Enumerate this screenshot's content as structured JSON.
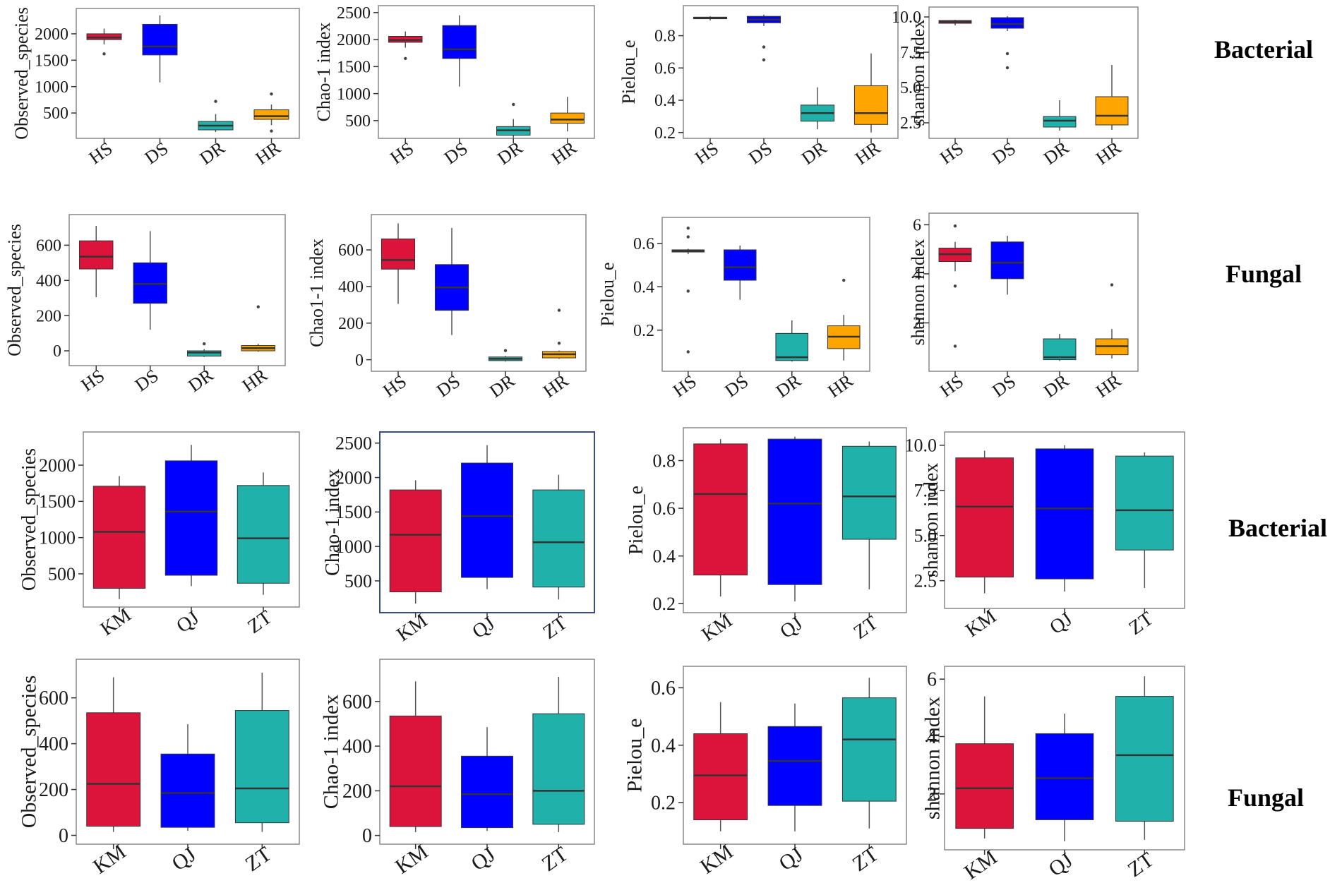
{
  "figure": {
    "row_labels": [
      "Bacterial",
      "Fungal",
      "Bacterial",
      "Fungal"
    ],
    "colors": {
      "HS": "#dc143c",
      "DS": "#0000ff",
      "DR": "#20b2aa",
      "HR": "#ffa500",
      "KM": "#dc143c",
      "QJ": "#0000ff",
      "ZT": "#20b2aa",
      "panel_border": "#888888",
      "panel_border_highlight": "#3a4a8a",
      "median": "#333333",
      "whisker": "#555555",
      "outlier": "#444444"
    }
  },
  "chart_data": [
    {
      "type": "box",
      "row": 0,
      "col": 0,
      "group": "Bacterial",
      "ylabel": "Observed_species",
      "ylim": [
        100,
        2400
      ],
      "yticks": [
        500,
        1000,
        1500,
        2000
      ],
      "categories": [
        "HS",
        "DS",
        "DR",
        "HR"
      ],
      "boxes": [
        {
          "q1": 1890,
          "median": 1930,
          "q3": 2000,
          "lo": 1800,
          "hi": 2100,
          "outliers": [
            1620
          ]
        },
        {
          "q1": 1600,
          "median": 1760,
          "q3": 2180,
          "lo": 1080,
          "hi": 2350,
          "outliers": []
        },
        {
          "q1": 180,
          "median": 260,
          "q3": 340,
          "lo": 140,
          "hi": 480,
          "outliers": [
            720
          ]
        },
        {
          "q1": 380,
          "median": 440,
          "q3": 560,
          "lo": 270,
          "hi": 660,
          "outliers": [
            860,
            160
          ]
        }
      ]
    },
    {
      "type": "box",
      "row": 0,
      "col": 1,
      "group": "Bacterial",
      "ylabel": "Chao-1 index",
      "ylim": [
        250,
        2550
      ],
      "yticks": [
        500,
        1000,
        1500,
        2000,
        2500
      ],
      "categories": [
        "HS",
        "DS",
        "DR",
        "HR"
      ],
      "boxes": [
        {
          "q1": 1950,
          "median": 1990,
          "q3": 2060,
          "lo": 1850,
          "hi": 2150,
          "outliers": [
            1650
          ]
        },
        {
          "q1": 1650,
          "median": 1820,
          "q3": 2260,
          "lo": 1130,
          "hi": 2450,
          "outliers": []
        },
        {
          "q1": 230,
          "median": 320,
          "q3": 390,
          "lo": 180,
          "hi": 530,
          "outliers": [
            800
          ]
        },
        {
          "q1": 450,
          "median": 520,
          "q3": 640,
          "lo": 300,
          "hi": 940,
          "outliers": []
        }
      ]
    },
    {
      "type": "box",
      "row": 0,
      "col": 2,
      "group": "Bacterial",
      "ylabel": "Pielou_e",
      "ylim": [
        0.19,
        0.96
      ],
      "yticks": [
        0.2,
        0.4,
        0.6,
        0.8
      ],
      "categories": [
        "HS",
        "DS",
        "DR",
        "HR"
      ],
      "boxes": [
        {
          "q1": 0.905,
          "median": 0.91,
          "q3": 0.915,
          "lo": 0.895,
          "hi": 0.92,
          "outliers": []
        },
        {
          "q1": 0.88,
          "median": 0.9,
          "q3": 0.92,
          "lo": 0.86,
          "hi": 0.93,
          "outliers": [
            0.73,
            0.65
          ]
        },
        {
          "q1": 0.27,
          "median": 0.32,
          "q3": 0.37,
          "lo": 0.22,
          "hi": 0.48,
          "outliers": []
        },
        {
          "q1": 0.25,
          "median": 0.32,
          "q3": 0.49,
          "lo": 0.2,
          "hi": 0.69,
          "outliers": []
        }
      ]
    },
    {
      "type": "box",
      "row": 0,
      "col": 3,
      "group": "Bacterial",
      "ylabel": "shannon index",
      "ylim": [
        1.7,
        10.4
      ],
      "yticks": [
        2.5,
        5.0,
        7.5,
        10.0
      ],
      "tick_labels": [
        "2.5",
        "5.0",
        "7.5",
        "10.0"
      ],
      "categories": [
        "HS",
        "DS",
        "DR",
        "HR"
      ],
      "boxes": [
        {
          "q1": 9.55,
          "median": 9.65,
          "q3": 9.75,
          "lo": 9.4,
          "hi": 9.8,
          "outliers": []
        },
        {
          "q1": 9.2,
          "median": 9.5,
          "q3": 9.95,
          "lo": 9.0,
          "hi": 10.05,
          "outliers": [
            7.4,
            6.4
          ]
        },
        {
          "q1": 2.2,
          "median": 2.65,
          "q3": 2.95,
          "lo": 1.95,
          "hi": 4.1,
          "outliers": []
        },
        {
          "q1": 2.35,
          "median": 3.0,
          "q3": 4.35,
          "lo": 2.0,
          "hi": 6.6,
          "outliers": []
        }
      ]
    },
    {
      "type": "box",
      "row": 1,
      "col": 0,
      "group": "Fungal",
      "ylabel": "Observed_species",
      "ylim": [
        -60,
        750
      ],
      "yticks": [
        0,
        200,
        400,
        600
      ],
      "categories": [
        "HS",
        "DS",
        "DR",
        "HR"
      ],
      "boxes": [
        {
          "q1": 465,
          "median": 535,
          "q3": 625,
          "lo": 305,
          "hi": 710,
          "outliers": []
        },
        {
          "q1": 270,
          "median": 380,
          "q3": 500,
          "lo": 120,
          "hi": 680,
          "outliers": []
        },
        {
          "q1": -30,
          "median": -10,
          "q3": 0,
          "lo": -35,
          "hi": 10,
          "outliers": [
            40
          ]
        },
        {
          "q1": 0,
          "median": 15,
          "q3": 30,
          "lo": -5,
          "hi": 40,
          "outliers": [
            250
          ]
        }
      ]
    },
    {
      "type": "box",
      "row": 1,
      "col": 1,
      "group": "Fungal",
      "ylabel": "Chao1-1 index",
      "ylim": [
        -40,
        770
      ],
      "yticks": [
        0,
        200,
        400,
        600
      ],
      "categories": [
        "HS",
        "DS",
        "DR",
        "HR"
      ],
      "boxes": [
        {
          "q1": 495,
          "median": 545,
          "q3": 660,
          "lo": 305,
          "hi": 745,
          "outliers": []
        },
        {
          "q1": 270,
          "median": 395,
          "q3": 520,
          "lo": 135,
          "hi": 720,
          "outliers": []
        },
        {
          "q1": -5,
          "median": 5,
          "q3": 15,
          "lo": -10,
          "hi": 20,
          "outliers": [
            50
          ]
        },
        {
          "q1": 10,
          "median": 30,
          "q3": 45,
          "lo": 5,
          "hi": 50,
          "outliers": [
            270,
            90
          ]
        }
      ]
    },
    {
      "type": "box",
      "row": 1,
      "col": 2,
      "group": "Fungal",
      "ylabel": "Pielou_e",
      "ylim": [
        0.03,
        0.7
      ],
      "yticks": [
        0.2,
        0.4,
        0.6
      ],
      "categories": [
        "HS",
        "DS",
        "DR",
        "HR"
      ],
      "boxes": [
        {
          "q1": 0.56,
          "median": 0.565,
          "q3": 0.57,
          "lo": 0.55,
          "hi": 0.575,
          "outliers": [
            0.67,
            0.63,
            0.38,
            0.1
          ]
        },
        {
          "q1": 0.43,
          "median": 0.49,
          "q3": 0.57,
          "lo": 0.34,
          "hi": 0.59,
          "outliers": []
        },
        {
          "q1": 0.06,
          "median": 0.075,
          "q3": 0.185,
          "lo": 0.055,
          "hi": 0.245,
          "outliers": []
        },
        {
          "q1": 0.115,
          "median": 0.17,
          "q3": 0.22,
          "lo": 0.06,
          "hi": 0.27,
          "outliers": [
            0.43
          ]
        }
      ]
    },
    {
      "type": "box",
      "row": 1,
      "col": 3,
      "group": "Fungal",
      "ylabel": "shannon index",
      "ylim": [
        0.2,
        6.3
      ],
      "yticks": [
        2,
        4,
        6
      ],
      "categories": [
        "HS",
        "DS",
        "DR",
        "HR"
      ],
      "boxes": [
        {
          "q1": 4.5,
          "median": 4.8,
          "q3": 5.05,
          "lo": 4.1,
          "hi": 5.3,
          "outliers": [
            5.95,
            3.5,
            1.05
          ]
        },
        {
          "q1": 3.8,
          "median": 4.45,
          "q3": 5.3,
          "lo": 3.15,
          "hi": 5.55,
          "outliers": []
        },
        {
          "q1": 0.5,
          "median": 0.6,
          "q3": 1.35,
          "lo": 0.45,
          "hi": 1.55,
          "outliers": []
        },
        {
          "q1": 0.7,
          "median": 1.05,
          "q3": 1.35,
          "lo": 0.55,
          "hi": 1.75,
          "outliers": [
            3.55
          ]
        }
      ]
    },
    {
      "type": "box",
      "row": 2,
      "col": 0,
      "group": "Bacterial",
      "ylabel": "Observed_species",
      "ylim": [
        100,
        2400
      ],
      "yticks": [
        500,
        1000,
        1500,
        2000
      ],
      "categories": [
        "KM",
        "QJ",
        "ZT"
      ],
      "boxes": [
        {
          "q1": 300,
          "median": 1080,
          "q3": 1710,
          "lo": 150,
          "hi": 1850,
          "outliers": []
        },
        {
          "q1": 480,
          "median": 1360,
          "q3": 2060,
          "lo": 330,
          "hi": 2280,
          "outliers": []
        },
        {
          "q1": 370,
          "median": 990,
          "q3": 1720,
          "lo": 210,
          "hi": 1900,
          "outliers": []
        }
      ]
    },
    {
      "type": "box",
      "row": 2,
      "col": 1,
      "group": "Bacterial",
      "ylabel": "Chao-1 index",
      "ylim": [
        100,
        2600
      ],
      "yticks": [
        500,
        1000,
        1500,
        2000,
        2500
      ],
      "categories": [
        "KM",
        "QJ",
        "ZT"
      ],
      "boxes": [
        {
          "q1": 340,
          "median": 1170,
          "q3": 1820,
          "lo": 170,
          "hi": 1960,
          "outliers": []
        },
        {
          "q1": 550,
          "median": 1440,
          "q3": 2210,
          "lo": 380,
          "hi": 2470,
          "outliers": []
        },
        {
          "q1": 410,
          "median": 1060,
          "q3": 1820,
          "lo": 230,
          "hi": 2040,
          "outliers": []
        }
      ]
    },
    {
      "type": "box",
      "row": 2,
      "col": 2,
      "group": "Bacterial",
      "ylabel": "Pielou_e",
      "ylim": [
        0.18,
        0.92
      ],
      "yticks": [
        0.2,
        0.4,
        0.6,
        0.8
      ],
      "categories": [
        "KM",
        "QJ",
        "ZT"
      ],
      "boxes": [
        {
          "q1": 0.32,
          "median": 0.66,
          "q3": 0.87,
          "lo": 0.23,
          "hi": 0.89,
          "outliers": []
        },
        {
          "q1": 0.28,
          "median": 0.62,
          "q3": 0.89,
          "lo": 0.21,
          "hi": 0.9,
          "outliers": []
        },
        {
          "q1": 0.47,
          "median": 0.65,
          "q3": 0.86,
          "lo": 0.26,
          "hi": 0.88,
          "outliers": []
        }
      ]
    },
    {
      "type": "box",
      "row": 2,
      "col": 3,
      "group": "Bacterial",
      "ylabel": "shannon index",
      "ylim": [
        1.2,
        10.5
      ],
      "yticks": [
        2.5,
        5.0,
        7.5,
        10.0
      ],
      "tick_labels": [
        "2.5",
        "5.0",
        "7.5",
        "10.0"
      ],
      "categories": [
        "KM",
        "QJ",
        "ZT"
      ],
      "boxes": [
        {
          "q1": 2.7,
          "median": 6.6,
          "q3": 9.3,
          "lo": 1.8,
          "hi": 9.7,
          "outliers": []
        },
        {
          "q1": 2.6,
          "median": 6.5,
          "q3": 9.8,
          "lo": 1.9,
          "hi": 10.0,
          "outliers": []
        },
        {
          "q1": 4.2,
          "median": 6.4,
          "q3": 9.4,
          "lo": 2.1,
          "hi": 9.6,
          "outliers": []
        }
      ]
    },
    {
      "type": "box",
      "row": 3,
      "col": 0,
      "group": "Fungal",
      "ylabel": "Observed_species",
      "ylim": [
        -20,
        750
      ],
      "yticks": [
        0,
        200,
        400,
        600
      ],
      "categories": [
        "KM",
        "QJ",
        "ZT"
      ],
      "boxes": [
        {
          "q1": 40,
          "median": 225,
          "q3": 535,
          "lo": 15,
          "hi": 690,
          "outliers": []
        },
        {
          "q1": 35,
          "median": 185,
          "q3": 355,
          "lo": 20,
          "hi": 485,
          "outliers": []
        },
        {
          "q1": 55,
          "median": 205,
          "q3": 545,
          "lo": 15,
          "hi": 710,
          "outliers": []
        }
      ]
    },
    {
      "type": "box",
      "row": 3,
      "col": 1,
      "group": "Fungal",
      "ylabel": "Chao-1 index",
      "ylim": [
        -20,
        770
      ],
      "yticks": [
        0,
        200,
        400,
        600
      ],
      "categories": [
        "KM",
        "QJ",
        "ZT"
      ],
      "boxes": [
        {
          "q1": 40,
          "median": 220,
          "q3": 535,
          "lo": 15,
          "hi": 690,
          "outliers": []
        },
        {
          "q1": 35,
          "median": 185,
          "q3": 355,
          "lo": 20,
          "hi": 485,
          "outliers": []
        },
        {
          "q1": 50,
          "median": 200,
          "q3": 545,
          "lo": 15,
          "hi": 710,
          "outliers": []
        }
      ]
    },
    {
      "type": "box",
      "row": 3,
      "col": 2,
      "group": "Fungal",
      "ylabel": "Pielou_e",
      "ylim": [
        0.07,
        0.66
      ],
      "yticks": [
        0.2,
        0.4,
        0.6
      ],
      "categories": [
        "KM",
        "QJ",
        "ZT"
      ],
      "boxes": [
        {
          "q1": 0.14,
          "median": 0.295,
          "q3": 0.44,
          "lo": 0.1,
          "hi": 0.55,
          "outliers": []
        },
        {
          "q1": 0.19,
          "median": 0.345,
          "q3": 0.465,
          "lo": 0.1,
          "hi": 0.545,
          "outliers": []
        },
        {
          "q1": 0.205,
          "median": 0.42,
          "q3": 0.565,
          "lo": 0.11,
          "hi": 0.635,
          "outliers": []
        }
      ]
    },
    {
      "type": "box",
      "row": 3,
      "col": 3,
      "group": "Fungal",
      "ylabel": "shannon index",
      "ylim": [
        0.2,
        6.3
      ],
      "yticks": [
        2,
        4,
        6
      ],
      "categories": [
        "KM",
        "QJ",
        "ZT"
      ],
      "boxes": [
        {
          "q1": 0.8,
          "median": 2.2,
          "q3": 3.75,
          "lo": 0.45,
          "hi": 5.4,
          "outliers": []
        },
        {
          "q1": 1.1,
          "median": 2.55,
          "q3": 4.1,
          "lo": 0.35,
          "hi": 4.8,
          "outliers": []
        },
        {
          "q1": 1.05,
          "median": 3.35,
          "q3": 5.4,
          "lo": 0.4,
          "hi": 6.1,
          "outliers": []
        }
      ]
    }
  ]
}
